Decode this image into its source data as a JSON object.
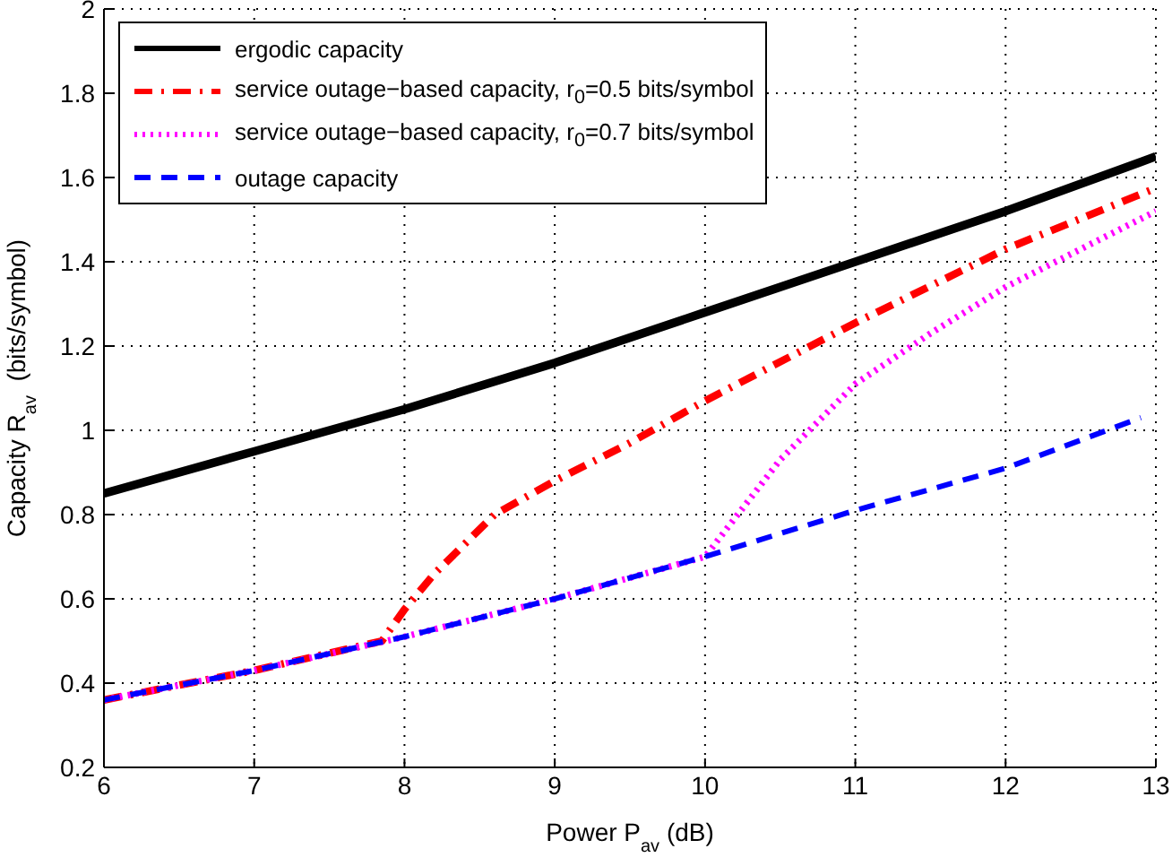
{
  "chart_data": {
    "type": "line",
    "xlabel": "Power P$_{av}$ (dB)",
    "ylabel": "Capacity R$_{av}$  (bits/symbol)",
    "xlim": [
      6,
      13
    ],
    "xticks": [
      6,
      7,
      8,
      9,
      10,
      11,
      12,
      13
    ],
    "ylim": [
      0.2,
      2
    ],
    "yticks": [
      0.2,
      0.4,
      0.6,
      0.8,
      1,
      1.2,
      1.4,
      1.6,
      1.8,
      2
    ],
    "grid": true,
    "legend": "top left",
    "marker": "none",
    "series": [
      {
        "name": "ergodic capacity",
        "color": "#000000",
        "line_style": "solid",
        "x": [
          6,
          7,
          8,
          9,
          10,
          11,
          12,
          13
        ],
        "values": [
          0.85,
          0.95,
          1.05,
          1.16,
          1.28,
          1.4,
          1.52,
          1.65
        ]
      },
      {
        "name": "service outage−based capacity, r$_{0}$=0.5 bits/symbol",
        "color": "#ff0000",
        "line_style": "dashdot",
        "x": [
          6,
          7,
          7.85,
          8.0,
          8.2,
          8.4,
          8.6,
          9,
          9.5,
          10,
          11,
          12,
          13
        ],
        "values": [
          0.36,
          0.43,
          0.5,
          0.575,
          0.66,
          0.73,
          0.8,
          0.88,
          0.97,
          1.07,
          1.255,
          1.43,
          1.575
        ]
      },
      {
        "name": "service outage−based capacity, r$_{0}$=0.7 bits/symbol",
        "color": "#ff00ff",
        "line_style": "dotted",
        "x": [
          6,
          7,
          8,
          9,
          10,
          10.5,
          11,
          11.5,
          12,
          12.5,
          13
        ],
        "values": [
          0.36,
          0.43,
          0.51,
          0.6,
          0.7,
          0.93,
          1.11,
          1.23,
          1.34,
          1.43,
          1.52
        ]
      },
      {
        "name": "outage capacity",
        "color": "#0000ff",
        "line_style": "dashed",
        "x": [
          6,
          7,
          8,
          9,
          10,
          11,
          12,
          12.9
        ],
        "values": [
          0.36,
          0.43,
          0.51,
          0.6,
          0.7,
          0.81,
          0.91,
          1.03
        ]
      }
    ]
  }
}
